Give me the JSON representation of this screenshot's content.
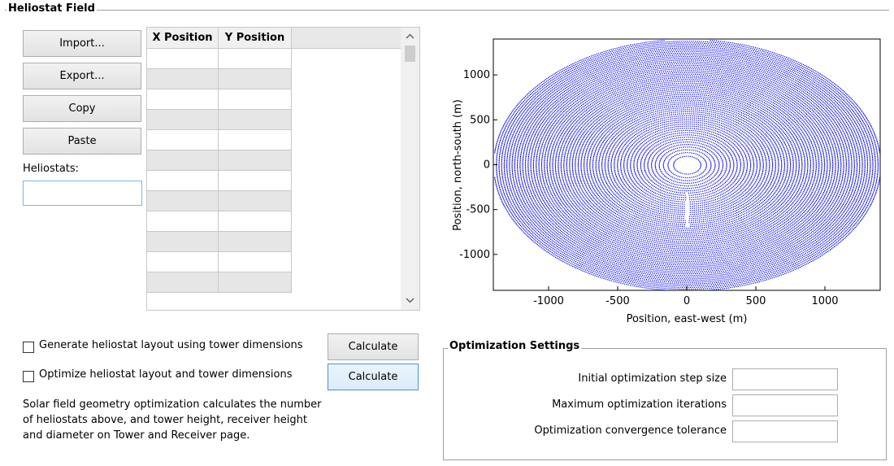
{
  "group": {
    "title": "Heliostat Field"
  },
  "buttons": {
    "import": "Import...",
    "export": "Export...",
    "copy": "Copy",
    "paste": "Paste"
  },
  "heliostats": {
    "label": "Heliostats:",
    "value": ""
  },
  "table": {
    "columns": [
      "X Position",
      "Y Position"
    ],
    "visible_rows": 12
  },
  "checkboxes": {
    "generate": {
      "label": "Generate heliostat layout using tower dimensions",
      "checked": false,
      "button": "Calculate"
    },
    "optimize": {
      "label": "Optimize heliostat layout and tower dimensions",
      "checked": false,
      "button": "Calculate"
    }
  },
  "note": "Solar field geometry optimization calculates the number of heliostats above, and tower height, receiver height and diameter on Tower and Receiver page.",
  "optimization": {
    "title": "Optimization Settings",
    "fields": [
      {
        "label": "Initial optimization step size",
        "value": ""
      },
      {
        "label": "Maximum optimization iterations",
        "value": ""
      },
      {
        "label": "Optimization convergence tolerance",
        "value": ""
      }
    ]
  },
  "chart_data": {
    "type": "scatter",
    "title": "",
    "xlabel": "Position, east-west (m)",
    "ylabel": "Position, north-south (m)",
    "xlim": [
      -1400,
      1400
    ],
    "ylim": [
      -1400,
      1400
    ],
    "x_ticks": [
      -1000,
      -500,
      0,
      500,
      1000
    ],
    "y_ticks": [
      1000,
      500,
      0,
      -500,
      -1000
    ],
    "x_tick_labels": [
      "-1000",
      "-500",
      "0",
      "500",
      "1000"
    ],
    "y_tick_labels": [
      "1000",
      "500",
      "0",
      "-500",
      "-1000"
    ],
    "series": [
      {
        "color": "#0000ee",
        "pattern": "radial-stagger",
        "inner_radius": 90,
        "outer_radius_x": 1400,
        "outer_radius_y": 1400,
        "ring_count": 60
      }
    ],
    "grid": false
  },
  "colors": {
    "series": "#0000ee",
    "focus": "#4d90d4"
  }
}
